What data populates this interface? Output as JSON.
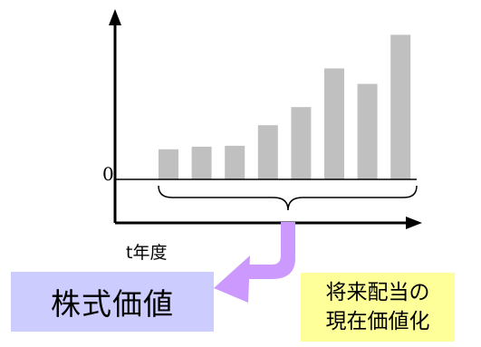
{
  "chart_data": {
    "type": "bar",
    "categories": [
      "",
      "",
      "",
      "",
      "",
      "",
      "",
      ""
    ],
    "values": [
      35,
      38,
      39,
      63,
      84,
      129,
      111,
      168
    ],
    "ylim": [
      0,
      200
    ],
    "baseline_label": "0",
    "xlabel": "t年度",
    "ylabel": "",
    "title": "",
    "grid": false,
    "bar_color": "#c0c0c0",
    "axis_color": "#000000"
  },
  "annotation": {
    "stock_value_label": "株式価値",
    "pv_line1": "将来配当の",
    "pv_line2": "現在価値化",
    "arrow_color": "#cc99ff",
    "stock_box_color": "#ccccff",
    "pv_box_color": "#ffff99"
  }
}
